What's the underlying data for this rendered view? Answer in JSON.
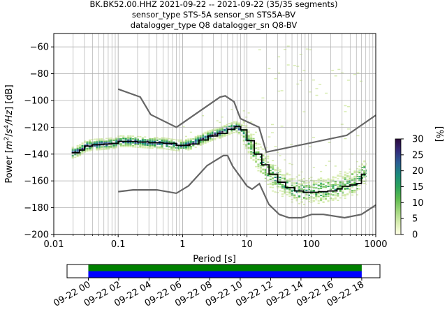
{
  "chart_data": {
    "type": "heatmap",
    "title_lines": [
      "BK.BK52.00.HHZ   2021-09-22 -- 2021-09-22  (35/35 segments)",
      "sensor_type STS-5A sensor_sn STS5A-BV",
      "datalogger_type Q8 datalogger_sn Q8-BV"
    ],
    "xlabel": "Period [s]",
    "ylabel_parts": [
      "Power [",
      "m",
      "2",
      "/",
      "s",
      "4",
      "/Hz",
      "] [dB]"
    ],
    "x_scale": "log",
    "xlim": [
      0.01,
      1000
    ],
    "ylim": [
      -200,
      -50
    ],
    "x_ticks": [
      {
        "value": 0.01,
        "label": "0.01"
      },
      {
        "value": 0.1,
        "label": "0.1"
      },
      {
        "value": 1,
        "label": "1"
      },
      {
        "value": 10,
        "label": "10"
      },
      {
        "value": 100,
        "label": "100"
      },
      {
        "value": 1000,
        "label": "1000"
      }
    ],
    "y_ticks": [
      {
        "value": -60,
        "label": "−60"
      },
      {
        "value": -80,
        "label": "−80"
      },
      {
        "value": -100,
        "label": "−100"
      },
      {
        "value": -120,
        "label": "−120"
      },
      {
        "value": -140,
        "label": "−140"
      },
      {
        "value": -160,
        "label": "−160"
      },
      {
        "value": -180,
        "label": "−180"
      },
      {
        "value": -200,
        "label": "−200"
      }
    ],
    "grid": true,
    "colorbar": {
      "label": "[%]",
      "range": [
        0,
        30
      ],
      "ticks": [
        {
          "value": 0,
          "label": "0"
        },
        {
          "value": 5,
          "label": "5"
        },
        {
          "value": 10,
          "label": "10"
        },
        {
          "value": 15,
          "label": "15"
        },
        {
          "value": 20,
          "label": "20"
        },
        {
          "value": 25,
          "label": "25"
        },
        {
          "value": 30,
          "label": "30"
        }
      ],
      "colors": [
        "#ffffe5",
        "#d7ecb0",
        "#9fd57c",
        "#5dba4e",
        "#2ba25b",
        "#1a8a7c",
        "#2a5e94",
        "#332b7a",
        "#2d0a3d"
      ]
    },
    "mode_line": [
      [
        0.019,
        -139
      ],
      [
        0.025,
        -137
      ],
      [
        0.03,
        -134
      ],
      [
        0.04,
        -133
      ],
      [
        0.06,
        -132.5
      ],
      [
        0.08,
        -132
      ],
      [
        0.1,
        -130.5
      ],
      [
        0.15,
        -130.5
      ],
      [
        0.2,
        -131
      ],
      [
        0.3,
        -131.5
      ],
      [
        0.5,
        -132
      ],
      [
        0.8,
        -133.5
      ],
      [
        1.0,
        -133.5
      ],
      [
        1.3,
        -132.5
      ],
      [
        1.8,
        -129.5
      ],
      [
        2.5,
        -126.5
      ],
      [
        3.5,
        -124.5
      ],
      [
        5,
        -121.5
      ],
      [
        6.5,
        -119.5
      ],
      [
        8,
        -122
      ],
      [
        10,
        -130
      ],
      [
        13,
        -140
      ],
      [
        17,
        -148
      ],
      [
        22,
        -155
      ],
      [
        30,
        -161
      ],
      [
        40,
        -165
      ],
      [
        55,
        -167.5
      ],
      [
        75,
        -168.5
      ],
      [
        100,
        -168.5
      ],
      [
        130,
        -168
      ],
      [
        180,
        -167.5
      ],
      [
        250,
        -166
      ],
      [
        300,
        -164
      ],
      [
        400,
        -163
      ],
      [
        500,
        -162
      ],
      [
        600,
        -155
      ],
      [
        700,
        -155
      ]
    ],
    "noise_models": [
      {
        "name": "high",
        "points": [
          [
            0.1,
            -91.5
          ],
          [
            0.22,
            -97.4
          ],
          [
            0.32,
            -110.5
          ],
          [
            0.8,
            -120
          ],
          [
            3.8,
            -97.5
          ],
          [
            4.6,
            -96.5
          ],
          [
            6.3,
            -101
          ],
          [
            7.9,
            -113.5
          ],
          [
            15.4,
            -120
          ],
          [
            20,
            -138.5
          ],
          [
            354.8,
            -126
          ],
          [
            1000,
            -111
          ]
        ]
      },
      {
        "name": "low",
        "points": [
          [
            0.1,
            -168
          ],
          [
            0.17,
            -166.7
          ],
          [
            0.4,
            -166.7
          ],
          [
            0.8,
            -169.2
          ],
          [
            1.24,
            -163.7
          ],
          [
            2.4,
            -148.6
          ],
          [
            4.3,
            -141.1
          ],
          [
            5,
            -141.1
          ],
          [
            6,
            -149
          ],
          [
            10,
            -163.8
          ],
          [
            12,
            -166.2
          ],
          [
            15.6,
            -162.1
          ],
          [
            21.9,
            -177.5
          ],
          [
            31.6,
            -185
          ],
          [
            45,
            -187.5
          ],
          [
            70,
            -187.5
          ],
          [
            101,
            -185
          ],
          [
            154,
            -185
          ],
          [
            328,
            -187.5
          ],
          [
            600,
            -185
          ],
          [
            1000,
            -178
          ]
        ]
      }
    ]
  },
  "timeline": {
    "tick_labels": [
      "09-22 00",
      "09-22 02",
      "09-22 04",
      "09-22 06",
      "09-22 08",
      "09-22 10",
      "09-22 12",
      "09-22 14",
      "09-22 16",
      "09-22 18"
    ],
    "start_hour": -1.4,
    "end_hour": 19.2,
    "data_start_hour": 0,
    "data_end_hour": 18.0,
    "data_colors": [
      "#008000",
      "#0000ff"
    ]
  }
}
